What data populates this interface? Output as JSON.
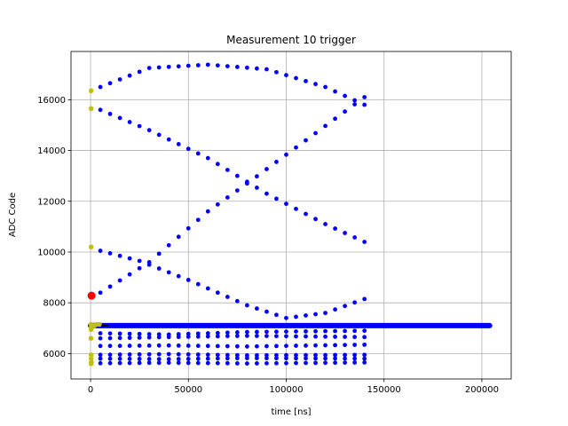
{
  "chart_data": {
    "type": "scatter",
    "title": "Measurement 10 trigger",
    "xlabel": "time [ns]",
    "ylabel": "ADC Code",
    "xlim": [
      -10000,
      215000
    ],
    "ylim": [
      5000,
      17900
    ],
    "xticks": [
      0,
      50000,
      100000,
      150000,
      200000
    ],
    "yticks": [
      6000,
      8000,
      10000,
      12000,
      14000,
      16000
    ],
    "grid": true,
    "colors": {
      "main": "#0000ff",
      "pre": "#bfbf19",
      "trigger": "#ff0000",
      "baseline": "#000000"
    },
    "series": [
      {
        "color": "main",
        "curves": [
          {
            "x0": 5000,
            "x1": 140000,
            "points": [
              [
                5000,
                16500
              ],
              [
                30000,
                17250
              ],
              [
                60000,
                17380
              ],
              [
                90000,
                17200
              ],
              [
                120000,
                16500
              ],
              [
                140000,
                15800
              ]
            ]
          },
          {
            "x0": 5000,
            "x1": 140000,
            "points": [
              [
                5000,
                15600
              ],
              [
                30000,
                14800
              ],
              [
                60000,
                13700
              ],
              [
                90000,
                12300
              ],
              [
                120000,
                11100
              ],
              [
                140000,
                10400
              ]
            ]
          },
          {
            "x0": 5000,
            "x1": 140000,
            "points": [
              [
                5000,
                8400
              ],
              [
                30000,
                9600
              ],
              [
                60000,
                11600
              ],
              [
                80000,
                12700
              ],
              [
                110000,
                14400
              ],
              [
                140000,
                16100
              ]
            ]
          },
          {
            "x0": 5000,
            "x1": 140000,
            "points": [
              [
                5000,
                10050
              ],
              [
                25000,
                9650
              ],
              [
                50000,
                8900
              ],
              [
                80000,
                7900
              ],
              [
                100000,
                7400
              ],
              [
                120000,
                7600
              ],
              [
                140000,
                8150
              ]
            ]
          },
          {
            "x0": 5000,
            "x1": 140000,
            "points": [
              [
                5000,
                6800
              ],
              [
                40000,
                6750
              ],
              [
                80000,
                6850
              ],
              [
                140000,
                6900
              ]
            ]
          },
          {
            "x0": 5000,
            "x1": 140000,
            "points": [
              [
                5000,
                6600
              ],
              [
                40000,
                6650
              ],
              [
                80000,
                6700
              ],
              [
                140000,
                6650
              ]
            ]
          },
          {
            "x0": 5000,
            "x1": 140000,
            "points": [
              [
                5000,
                6300
              ],
              [
                40000,
                6320
              ],
              [
                80000,
                6280
              ],
              [
                140000,
                6350
              ]
            ]
          },
          {
            "x0": 5000,
            "x1": 140000,
            "points": [
              [
                5000,
                5950
              ],
              [
                40000,
                5980
              ],
              [
                80000,
                5930
              ],
              [
                140000,
                5950
              ]
            ]
          },
          {
            "x0": 5000,
            "x1": 140000,
            "points": [
              [
                5000,
                5800
              ],
              [
                40000,
                5780
              ],
              [
                80000,
                5820
              ],
              [
                140000,
                5800
              ]
            ]
          },
          {
            "x0": 5000,
            "x1": 140000,
            "points": [
              [
                5000,
                5620
              ],
              [
                40000,
                5640
              ],
              [
                80000,
                5610
              ],
              [
                140000,
                5650
              ]
            ]
          }
        ],
        "dense_line": {
          "x0": 0,
          "x1": 204000,
          "y": 7100,
          "thickness": 6
        }
      },
      {
        "color": "pre",
        "points": [
          [
            300,
            16350
          ],
          [
            300,
            15650
          ],
          [
            300,
            10200
          ],
          [
            300,
            7150
          ],
          [
            400,
            7050
          ],
          [
            300,
            6950
          ],
          [
            200,
            6600
          ],
          [
            300,
            5950
          ],
          [
            300,
            5800
          ],
          [
            400,
            5650
          ],
          [
            300,
            5600
          ],
          [
            2000,
            7100
          ],
          [
            3000,
            7150
          ],
          [
            4500,
            7150
          ]
        ]
      },
      {
        "color": "trigger",
        "points": [
          [
            500,
            8280
          ]
        ]
      }
    ]
  }
}
